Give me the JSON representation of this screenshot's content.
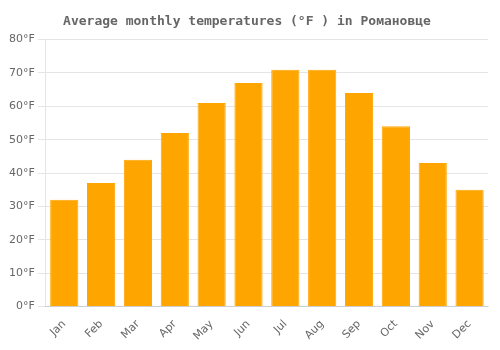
{
  "chart_data": {
    "type": "bar",
    "title": "Average monthly temperatures (°F ) in Романовце",
    "categories": [
      "Jan",
      "Feb",
      "Mar",
      "Apr",
      "May",
      "Jun",
      "Jul",
      "Aug",
      "Sep",
      "Oct",
      "Nov",
      "Dec"
    ],
    "values": [
      32,
      37,
      44,
      52,
      61,
      67,
      71,
      71,
      64,
      54,
      43,
      35
    ],
    "color": "#FFA500",
    "ylim": [
      0,
      80
    ],
    "yticks": [
      {
        "value": 0,
        "label": "0°F"
      },
      {
        "value": 10,
        "label": "10°F"
      },
      {
        "value": 20,
        "label": "20°F"
      },
      {
        "value": 30,
        "label": "30°F"
      },
      {
        "value": 40,
        "label": "40°F"
      },
      {
        "value": 50,
        "label": "50°F"
      },
      {
        "value": 60,
        "label": "60°F"
      },
      {
        "value": 70,
        "label": "70°F"
      },
      {
        "value": 80,
        "label": "80°F"
      }
    ],
    "grid": true
  }
}
